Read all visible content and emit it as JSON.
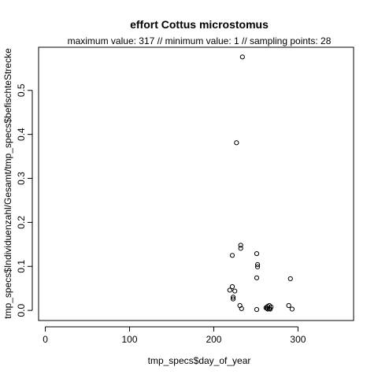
{
  "chart_data": {
    "type": "scatter",
    "title": "effort Cottus microstomus",
    "subtitle": "maximum value: 317  //  minimum value: 1  // sampling points: 28",
    "xlabel": "tmp_specs$day_of_year",
    "ylabel": "tmp_specs$Individuenzahl/Gesamt/tmp_specs$befischteStrecke",
    "xlim": [
      -8,
      366
    ],
    "ylim": [
      -0.023,
      0.598
    ],
    "xticks": [
      0,
      100,
      200,
      300
    ],
    "yticks": [
      0.0,
      0.1,
      0.2,
      0.3,
      0.4,
      0.5
    ],
    "xtick_labels": [
      "0",
      "100",
      "200",
      "300"
    ],
    "ytick_labels": [
      "0.0",
      "0.1",
      "0.2",
      "0.3",
      "0.4",
      "0.5"
    ],
    "grid": false,
    "points": [
      {
        "x": 234,
        "y": 0.576
      },
      {
        "x": 227,
        "y": 0.381
      },
      {
        "x": 232,
        "y": 0.148
      },
      {
        "x": 232,
        "y": 0.141
      },
      {
        "x": 222,
        "y": 0.125
      },
      {
        "x": 251,
        "y": 0.129
      },
      {
        "x": 252,
        "y": 0.104
      },
      {
        "x": 252,
        "y": 0.099
      },
      {
        "x": 251,
        "y": 0.074
      },
      {
        "x": 291,
        "y": 0.072
      },
      {
        "x": 222,
        "y": 0.054
      },
      {
        "x": 219,
        "y": 0.046
      },
      {
        "x": 225,
        "y": 0.044
      },
      {
        "x": 223,
        "y": 0.03
      },
      {
        "x": 223,
        "y": 0.026
      },
      {
        "x": 231,
        "y": 0.011
      },
      {
        "x": 233,
        "y": 0.004
      },
      {
        "x": 251,
        "y": 0.002
      },
      {
        "x": 262,
        "y": 0.006
      },
      {
        "x": 264,
        "y": 0.009
      },
      {
        "x": 266,
        "y": 0.011
      },
      {
        "x": 268,
        "y": 0.008
      },
      {
        "x": 264,
        "y": 0.003
      },
      {
        "x": 263,
        "y": 0.005
      },
      {
        "x": 267,
        "y": 0.003
      },
      {
        "x": 289,
        "y": 0.011
      },
      {
        "x": 293,
        "y": 0.003
      },
      {
        "x": 266,
        "y": 0.004
      }
    ]
  },
  "colors": {
    "point_stroke": "#000000",
    "axis": "#000000",
    "background": "#ffffff"
  }
}
